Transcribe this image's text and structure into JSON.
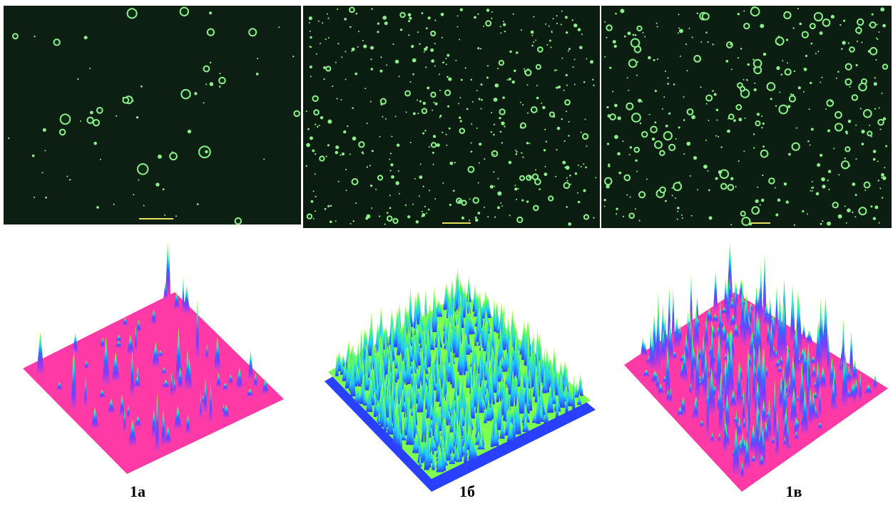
{
  "panels": [
    {
      "label": "1а"
    },
    {
      "label": "1б"
    },
    {
      "label": "1в"
    }
  ]
}
